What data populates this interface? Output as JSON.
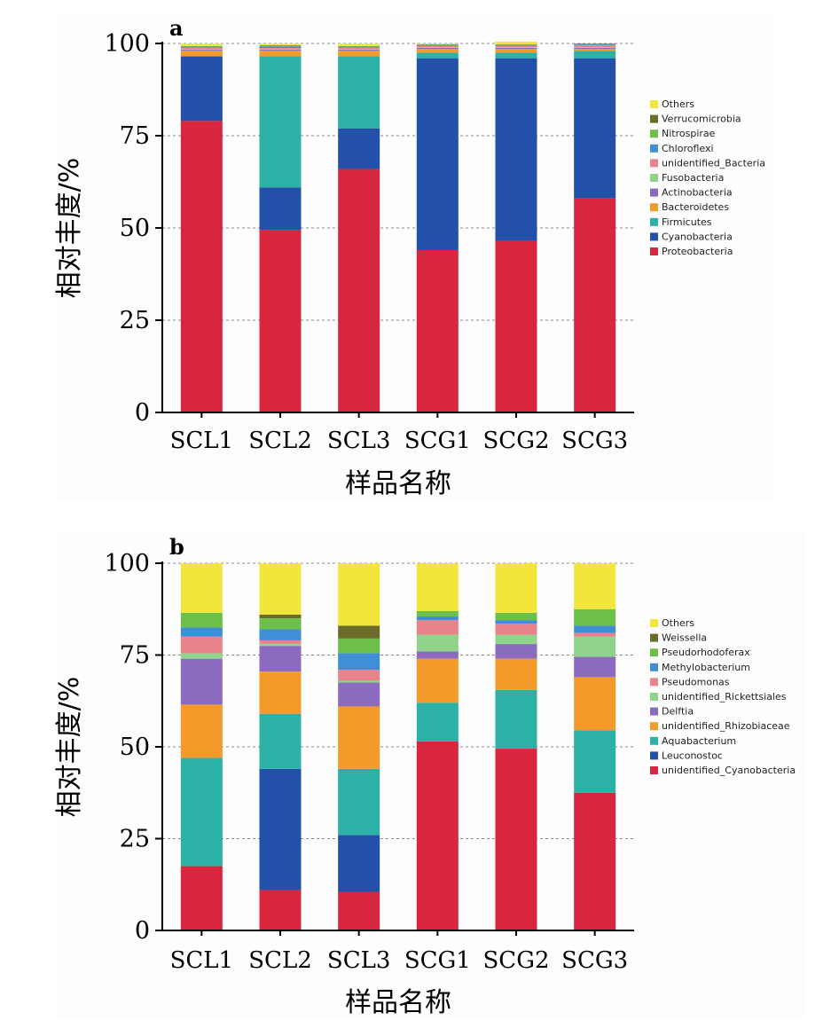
{
  "chart_data": [
    {
      "type": "bar",
      "stacked": true,
      "panel_label": "a",
      "categories": [
        "SCL1",
        "SCL2",
        "SCL3",
        "SCG1",
        "SCG2",
        "SCG3"
      ],
      "ylabel": "相对丰度/%",
      "xlabel": "样品名称",
      "ylim": [
        0,
        100
      ],
      "yticks": [
        0,
        25,
        50,
        75,
        100
      ],
      "grid": true,
      "legend_position": "right",
      "series": [
        {
          "name": "Proteobacteria",
          "color": "#d7263d",
          "values": [
            79,
            49.5,
            66,
            44,
            46.5,
            58
          ]
        },
        {
          "name": "Cyanobacteria",
          "color": "#2350a8",
          "values": [
            17.5,
            11.5,
            11,
            52,
            49.5,
            38
          ]
        },
        {
          "name": "Firmicutes",
          "color": "#2bb1a5",
          "values": [
            0,
            35.5,
            19.5,
            1.5,
            1.5,
            2
          ]
        },
        {
          "name": "Bacteroidetes",
          "color": "#f39a2b",
          "values": [
            1.5,
            1.5,
            1.5,
            1,
            1,
            0.5
          ]
        },
        {
          "name": "Actinobacteria",
          "color": "#8a6bbf",
          "values": [
            0.3,
            0.3,
            0.3,
            0.3,
            0.3,
            0.3
          ]
        },
        {
          "name": "Fusobacteria",
          "color": "#8fd48a",
          "values": [
            0.2,
            0.2,
            0.2,
            0.2,
            0.2,
            0.2
          ]
        },
        {
          "name": "unidentified_Bacteria",
          "color": "#e8838b",
          "values": [
            0.3,
            0.3,
            0.3,
            0.3,
            0.3,
            0.5
          ]
        },
        {
          "name": "Chloroflexi",
          "color": "#3f8fd6",
          "values": [
            0.2,
            0.4,
            0.2,
            0.2,
            0.2,
            0.2
          ]
        },
        {
          "name": "Nitrospirae",
          "color": "#6cc04a",
          "values": [
            0.2,
            0.2,
            0.2,
            0.2,
            0.2,
            0.2
          ]
        },
        {
          "name": "Verrucomicrobia",
          "color": "#6b6b2a",
          "values": [
            0.1,
            0.1,
            0.1,
            0.1,
            0.1,
            0.1
          ]
        },
        {
          "name": "Others",
          "color": "#f2e63c",
          "values": [
            0.7,
            0.5,
            0.7,
            0.2,
            0.7,
            0
          ]
        }
      ]
    },
    {
      "type": "bar",
      "stacked": true,
      "panel_label": "b",
      "categories": [
        "SCL1",
        "SCL2",
        "SCL3",
        "SCG1",
        "SCG2",
        "SCG3"
      ],
      "ylabel": "相对丰度/%",
      "xlabel": "样品名称",
      "ylim": [
        0,
        100
      ],
      "yticks": [
        0,
        25,
        50,
        75,
        100
      ],
      "grid": true,
      "legend_position": "right",
      "series": [
        {
          "name": "unidentified_Cyanobacteria",
          "color": "#d7263d",
          "values": [
            17.5,
            11,
            10.5,
            51.5,
            49.5,
            37.5
          ]
        },
        {
          "name": "Leuconostoc",
          "color": "#2350a8",
          "values": [
            0,
            33,
            15.5,
            0,
            0,
            0
          ]
        },
        {
          "name": "Aquabacterium",
          "color": "#2bb1a5",
          "values": [
            29.5,
            15,
            18,
            10.5,
            16,
            17
          ]
        },
        {
          "name": "unidentified_Rhizobiaceae",
          "color": "#f39a2b",
          "values": [
            14.5,
            11.5,
            17,
            12,
            8.5,
            14.5
          ]
        },
        {
          "name": "Delftia",
          "color": "#8a6bbf",
          "values": [
            12.5,
            7,
            6.5,
            2,
            4,
            5.5
          ]
        },
        {
          "name": "unidentified_Rickettsiales",
          "color": "#8fd48a",
          "values": [
            1.5,
            0.5,
            0.5,
            4.5,
            2.5,
            5.5
          ]
        },
        {
          "name": "Pseudomonas",
          "color": "#e8838b",
          "values": [
            4.5,
            1,
            3,
            4,
            3,
            1
          ]
        },
        {
          "name": "Methylobacterium",
          "color": "#3f8fd6",
          "values": [
            2.5,
            3,
            4.5,
            1,
            1,
            2
          ]
        },
        {
          "name": "Pseudorhodoferax",
          "color": "#6cc04a",
          "values": [
            4,
            3,
            4,
            1.5,
            2,
            4.5
          ]
        },
        {
          "name": "Weissella",
          "color": "#6b6b2a",
          "values": [
            0,
            1,
            3.5,
            0,
            0,
            0
          ]
        },
        {
          "name": "Others",
          "color": "#f2e63c",
          "values": [
            13.5,
            14,
            17,
            13,
            13.5,
            12.5
          ]
        }
      ]
    }
  ]
}
